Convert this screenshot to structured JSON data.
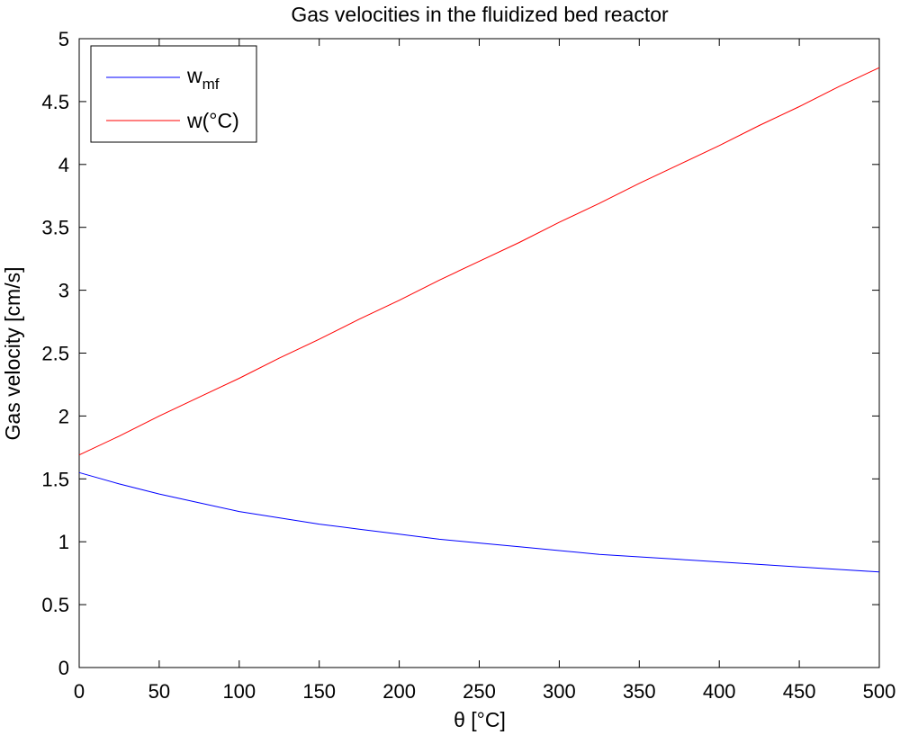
{
  "chart_data": {
    "type": "line",
    "title": "Gas velocities in the fluidized bed reactor",
    "xlabel": "θ [°C]",
    "ylabel": "Gas velocity [cm/s]",
    "xlim": [
      0,
      500
    ],
    "ylim": [
      0,
      5
    ],
    "xticks": [
      0,
      50,
      100,
      150,
      200,
      250,
      300,
      350,
      400,
      450,
      500
    ],
    "yticks": [
      0,
      0.5,
      1,
      1.5,
      2,
      2.5,
      3,
      3.5,
      4,
      4.5,
      5
    ],
    "ytick_labels": [
      "0",
      "0.5",
      "1",
      "1.5",
      "2",
      "2.5",
      "3",
      "3.5",
      "4",
      "4.5",
      "5"
    ],
    "grid": false,
    "legend_position": "top-left",
    "x": [
      0,
      25,
      50,
      75,
      100,
      125,
      150,
      175,
      200,
      225,
      250,
      275,
      300,
      325,
      350,
      375,
      400,
      425,
      450,
      475,
      500
    ],
    "series": [
      {
        "name": "w_mf",
        "legend_main": "w",
        "legend_sub": "mf",
        "color": "#0000ff",
        "values": [
          1.55,
          1.46,
          1.38,
          1.31,
          1.24,
          1.19,
          1.14,
          1.1,
          1.06,
          1.02,
          0.99,
          0.96,
          0.93,
          0.9,
          0.88,
          0.86,
          0.84,
          0.82,
          0.8,
          0.78,
          0.76
        ]
      },
      {
        "name": "w(°C)",
        "legend_main": "w(°C)",
        "legend_sub": "",
        "color": "#ff0000",
        "values": [
          1.69,
          1.84,
          2.0,
          2.15,
          2.3,
          2.46,
          2.61,
          2.77,
          2.92,
          3.08,
          3.23,
          3.38,
          3.54,
          3.69,
          3.85,
          4.0,
          4.15,
          4.31,
          4.46,
          4.62,
          4.77
        ]
      }
    ]
  }
}
